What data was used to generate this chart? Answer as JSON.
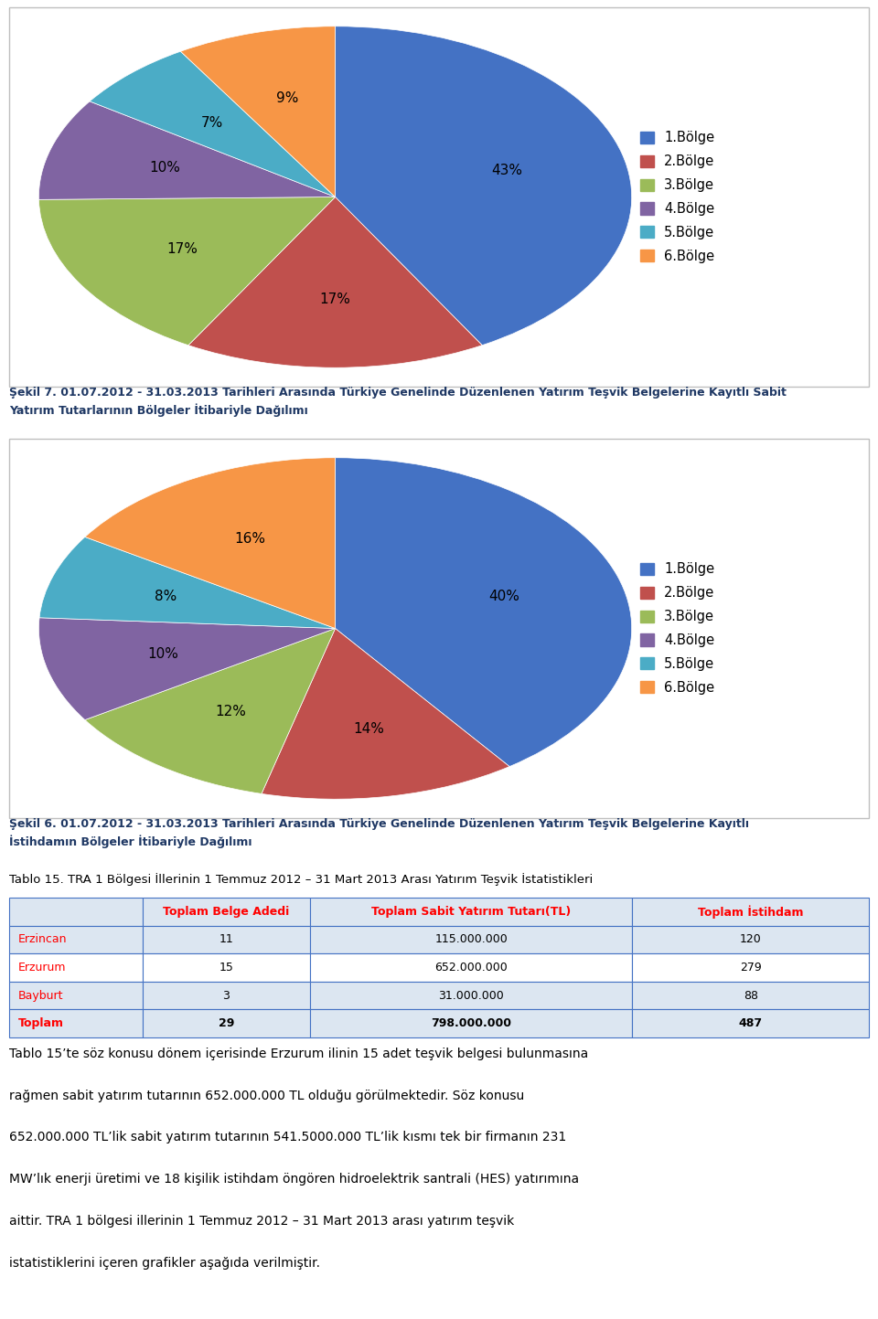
{
  "pie1": {
    "values": [
      43,
      17,
      17,
      10,
      7,
      9
    ],
    "labels": [
      "1.Bölge",
      "2.Bölge",
      "3.Bölge",
      "4.Bölge",
      "5.Bölge",
      "6.Bölge"
    ],
    "colors": [
      "#4472C4",
      "#C0504D",
      "#9BBB59",
      "#8064A2",
      "#4BACC6",
      "#F79646"
    ],
    "pct_labels": [
      "43%",
      "17%",
      "17%",
      "10%",
      "7%",
      "9%"
    ]
  },
  "pie1_caption": "Şekil 7. 01.07.2012 - 31.03.2013 Tarihleri Arasında Türkiye Genelinde Düzenlenen Yatırım Teşvik Belgelerine Kayıtlı Sabit\nYatırım Tutarlarının Bölgeler İtibariyle Dağılımı",
  "pie2": {
    "values": [
      40,
      14,
      12,
      10,
      8,
      16
    ],
    "labels": [
      "1.Bölge",
      "2.Bölge",
      "3.Bölge",
      "4.Bölge",
      "5.Bölge",
      "6.Bölge"
    ],
    "colors": [
      "#4472C4",
      "#C0504D",
      "#9BBB59",
      "#8064A2",
      "#4BACC6",
      "#F79646"
    ],
    "pct_labels": [
      "40%",
      "14%",
      "12%",
      "10%",
      "8%",
      "16%"
    ]
  },
  "pie2_caption": "Şekil 6. 01.07.2012 - 31.03.2013 Tarihleri Arasında Türkiye Genelinde Düzenlenen Yatırım Teşvik Belgelerine Kayıtlı\nİstihdamın Bölgeler İtibariyle Dağılımı",
  "table_title": "Tablo 15. TRA 1 Bölgesi İllerinin 1 Temmuz 2012 – 31 Mart 2013 Arası Yatırım Teşvik İstatistikleri",
  "table_headers": [
    "",
    "Toplam Belge Adedi",
    "Toplam Sabit Yatırım Tutarı(TL)",
    "Toplam İstihdam"
  ],
  "table_rows": [
    [
      "Erzincan",
      "11",
      "115.000.000",
      "120"
    ],
    [
      "Erzurum",
      "15",
      "652.000.000",
      "279"
    ],
    [
      "Bayburt",
      "3",
      "31.000.000",
      "88"
    ],
    [
      "Toplam",
      "29",
      "798.000.000",
      "487"
    ]
  ],
  "para_lines": [
    "Tablo 15’te söz konusu dönem içerisinde Erzurum ilinin 15 adet teşvik belgesi bulunmasına",
    "rağmen sabit yatırım tutarının 652.000.000 TL olduğu görülmektedir. Söz konusu",
    "652.000.000 TL’lik sabit yatırım tutarının 541.5000.000 TL’lik kısmı tek bir firmanın 231",
    "MW’lık enerji üretimi ve 18 kişilik istihdam öngören hidroelektrik santrali (HES) yatırımına",
    "aittir. TRA 1 bölgesi illerinin 1 Temmuz 2012 – 31 Mart 2013 arası yatırım teşvik",
    "istatistiklerini içeren grafikler aşağıda verilmiştir."
  ],
  "header_bg": "#DCE6F1",
  "header_text_color": "#FF0000",
  "row_bg_colors": [
    "#DCE6F1",
    "#FFFFFF",
    "#DCE6F1",
    "#DCE6F1"
  ],
  "border_color": "#4472C4",
  "caption_color": "#1F3864",
  "fig_bg": "#FFFFFF"
}
